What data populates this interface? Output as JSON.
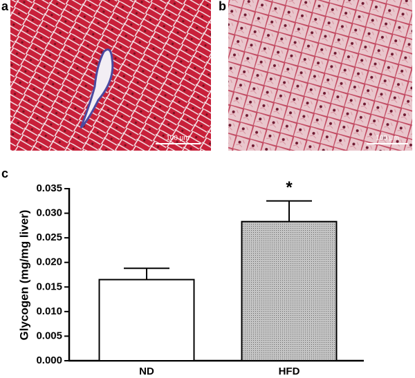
{
  "panels": {
    "a": "a",
    "b": "b",
    "c": "c",
    "scale_a": "100 μm",
    "scale_b": "100 μm"
  },
  "chart_data": {
    "type": "bar",
    "y_label": "Glycogen (mg/mg liver)",
    "categories": [
      "ND",
      "HFD"
    ],
    "values": [
      0.0165,
      0.0283
    ],
    "errors": [
      0.0023,
      0.0042
    ],
    "colors": [
      "#ffffff",
      "#c4c4c4"
    ],
    "annotation": "*",
    "ylim": [
      0,
      0.035
    ],
    "yticks": [
      {
        "value": 0,
        "label": "0.000"
      },
      {
        "value": 0.005,
        "label": "0.005"
      },
      {
        "value": 0.01,
        "label": "0.010"
      },
      {
        "value": 0.015,
        "label": "0.015"
      },
      {
        "value": 0.02,
        "label": "0.020"
      },
      {
        "value": 0.025,
        "label": "0.025"
      },
      {
        "value": 0.03,
        "label": "0.030"
      },
      {
        "value": 0.035,
        "label": "0.035"
      }
    ]
  }
}
